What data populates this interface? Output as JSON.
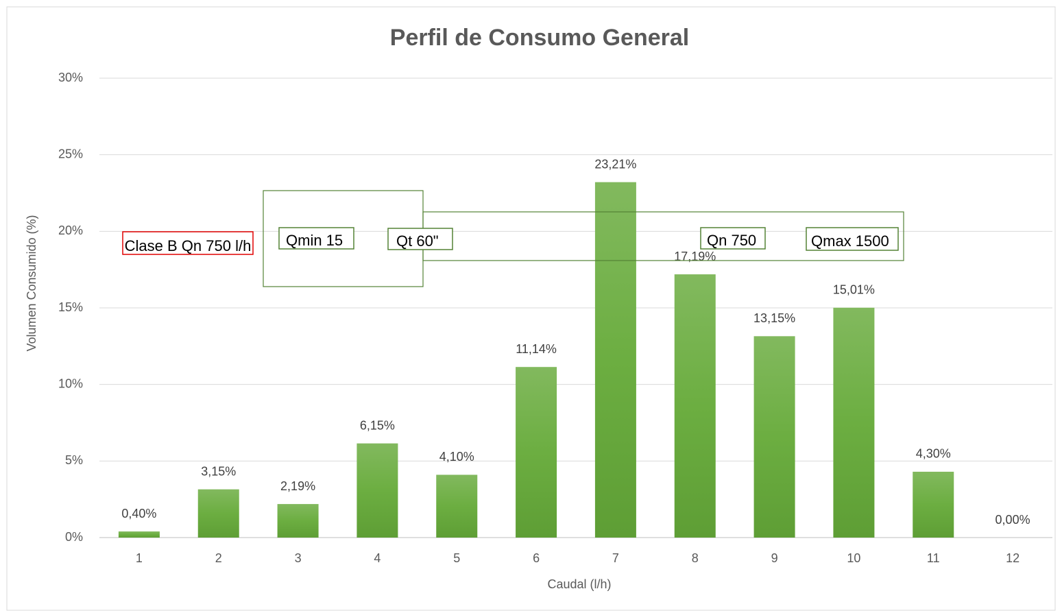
{
  "chart_data": {
    "type": "bar",
    "title": "Perfil de Consumo General",
    "x_label": "Caudal (l/h)",
    "y_label": "Volumen Consumido (%)",
    "categories": [
      "1",
      "2",
      "3",
      "4",
      "5",
      "6",
      "7",
      "8",
      "9",
      "10",
      "11",
      "12"
    ],
    "values": [
      0.4,
      3.15,
      2.19,
      6.15,
      4.1,
      11.14,
      23.21,
      17.19,
      13.15,
      15.01,
      4.3,
      0.0
    ],
    "value_labels": [
      "0,40%",
      "3,15%",
      "2,19%",
      "6,15%",
      "4,10%",
      "11,14%",
      "23,21%",
      "17,19%",
      "13,15%",
      "15,01%",
      "4,30%",
      "0,00%"
    ],
    "color": "#70ad47",
    "ylim": [
      0,
      30
    ],
    "yticks": [
      {
        "value": 0,
        "label": "0%"
      },
      {
        "value": 5,
        "label": "5%"
      },
      {
        "value": 10,
        "label": "10%"
      },
      {
        "value": 15,
        "label": "15%"
      },
      {
        "value": 20,
        "label": "20%"
      },
      {
        "value": 25,
        "label": "25%"
      },
      {
        "value": 30,
        "label": "30%"
      }
    ],
    "grid": true,
    "annotations": [
      "Clase B Qn 750 l/h",
      "Qmin 15",
      "Qt 60\"",
      "Qn 750",
      "Qmax 1500"
    ]
  }
}
